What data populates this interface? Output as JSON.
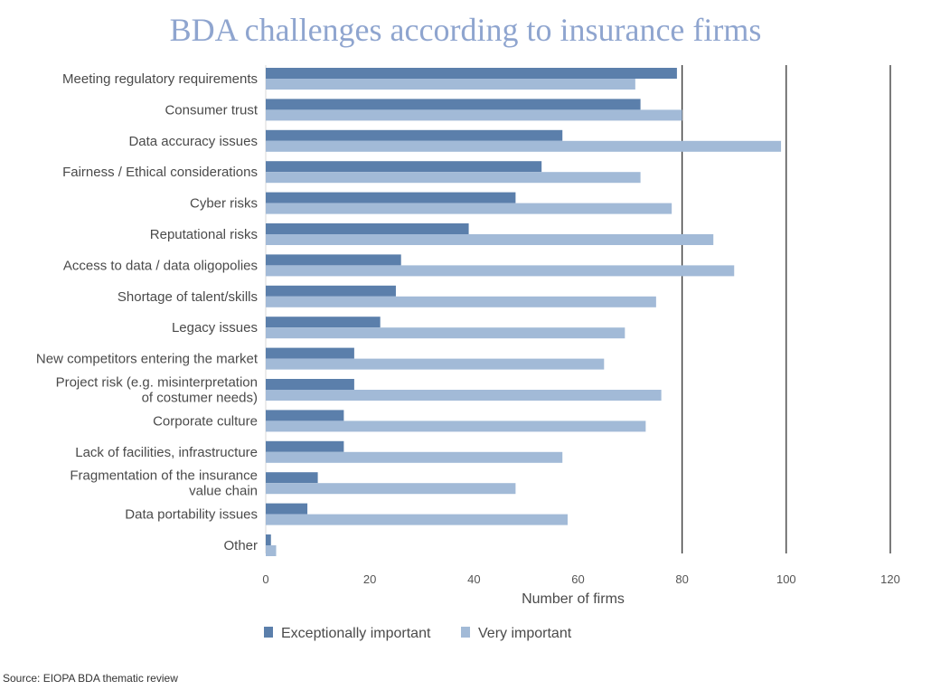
{
  "chart_data": {
    "type": "bar",
    "orientation": "horizontal",
    "title": "BDA challenges according to insurance firms",
    "xlabel": "Number of firms",
    "ylabel": "",
    "xlim": [
      0,
      120
    ],
    "xticks": [
      0,
      20,
      40,
      60,
      80,
      100,
      120
    ],
    "grid": "vertical lines at 80, 100, 120",
    "legend_position": "bottom",
    "categories": [
      "Meeting regulatory requirements",
      "Consumer trust",
      "Data accuracy issues",
      "Fairness / Ethical considerations",
      "Cyber risks",
      "Reputational risks",
      "Access to data / data oligopolies",
      "Shortage of talent/skills",
      "Legacy issues",
      "New competitors entering the market",
      "Project risk (e.g. misinterpretation\nof costumer needs)",
      "Corporate culture",
      "Lack of facilities, infrastructure",
      "Fragmentation of the insurance\nvalue chain",
      "Data portability issues",
      "Other"
    ],
    "series": [
      {
        "name": "Exceptionally important",
        "color": "#5b7fab",
        "values": [
          79,
          72,
          57,
          53,
          48,
          39,
          26,
          25,
          22,
          17,
          17,
          15,
          15,
          10,
          8,
          1
        ]
      },
      {
        "name": "Very important",
        "color": "#a2bad7",
        "values": [
          71,
          80,
          99,
          72,
          78,
          86,
          90,
          75,
          69,
          65,
          76,
          73,
          57,
          48,
          58,
          2
        ]
      }
    ],
    "source": "Source: EIOPA BDA thematic review"
  }
}
